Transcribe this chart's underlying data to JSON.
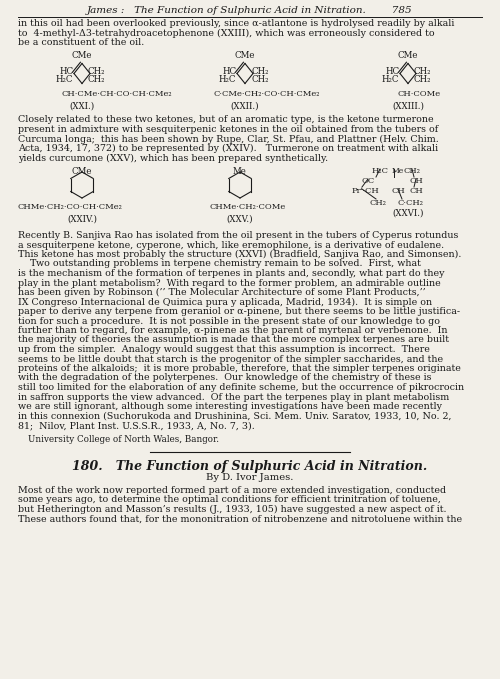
{
  "bg_color": "#f2efe8",
  "text_color": "#1a1a1a",
  "header": "James :   The Function of Sulphuric Acid in Nitration.        785",
  "para1": "in this oil had been overlooked previously, since α-atlantone is hydrolysed readily by alkali\nto  4-methyl-Δ3-tetrahydroacetophenone (XXIII), which was erroneously considered to\nbe a constituent of the oil.",
  "para2": "Closely related to these two ketones, but of an aromatic type, is the ketone turmerone\npresent in admixture with sesquiterpenic ketones in the oil obtained from the tubers of\nCurcuma longa;  this has been shown by Rupe, Clar, St. Pfau, and Plattner (Helv. Chim.\nActa, 1934, 17, 372) to be represented by (XXIV).   Turmerone on treatment with alkali\nyields curcumone (XXV), which has been prepared synthetically.",
  "para3_lines": [
    "Recently B. Sanjiva Rao has isolated from the oil present in the tubers of Cyperus rotundus",
    "a sesquiterpene ketone, cyperone, which, like eremophilone, is a derivative of eudalene.",
    "This ketone has most probably the structure (XXVI) (Bradfield, Sanjiva Rao, and Simonsen).",
    "    Two outstanding problems in terpene chemistry remain to be solved.  First, what",
    "is the mechanism of the formation of terpenes in plants and, secondly, what part do they",
    "play in the plant metabolism?  With regard to the former problem, an admirable outline",
    "has been given by Robinson (’’ The Molecular Architecture of some Plant Products,’’",
    "IX Congreso Internacional de Quimica pura y aplicada, Madrid, 1934).  It is simple on",
    "paper to derive any terpene from geraniol or α-pinene, but there seems to be little justifica-",
    "tion for such a procedure.  It is not possible in the present state of our knowledge to go",
    "further than to regard, for example, α-pinene as the parent of myrtenal or verbenone.  In",
    "the majority of theories the assumption is made that the more complex terpenes are built",
    "up from the simpler.  Analogy would suggest that this assumption is incorrect.  There",
    "seems to be little doubt that starch is the progenitor of the simpler saccharides, and the",
    "proteins of the alkaloids;  it is more probable, therefore, that the simpler terpenes originate",
    "with the degradation of the polyterpenes.  Our knowledge of the chemistry of these is",
    "still too limited for the elaboration of any definite scheme, but the occurrence of pikrocrocin",
    "in saffron supports the view advanced.  Of the part the terpenes play in plant metabolism",
    "we are still ignorant, although some interesting investigations have been made recently",
    "in this connexion (Suchorukoda and Drushinina, Sci. Mem. Univ. Saratov, 1933, 10, No. 2,",
    "81;  Nilov, Plant Inst. U.S.S.R., 1933, A, No. 7, 3)."
  ],
  "univ_line": "University College of North Wales, Bangor.",
  "section_heading": "180.   The Function of Sulphuric Acid in Nitration.",
  "author_line": "By D. Ivor James.",
  "para4_lines": [
    "Most of the work now reported formed part of a more extended investigation, conducted",
    "some years ago, to determine the optimal conditions for efficient trinitration of toluene,",
    "but Hetherington and Masson’s results (J., 1933, 105) have suggested a new aspect of it.",
    "These authors found that, for the mononitration of nitrobenzene and nitrotoluene within the"
  ]
}
